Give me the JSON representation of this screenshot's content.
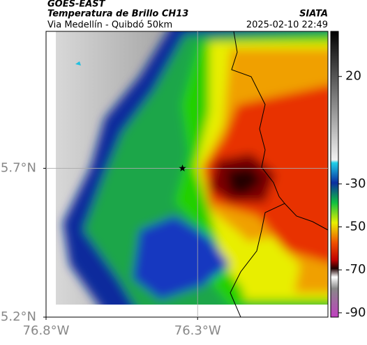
{
  "header": {
    "satellite": "GOES-EAST",
    "product": "Temperatura de Brillo CH13",
    "source": "SIATA",
    "region": "Via Medellín - Quibdó 50km",
    "datetime": "2025-02-10 22:49"
  },
  "map": {
    "xlim": [
      -76.8,
      -75.87
    ],
    "ylim": [
      5.2,
      6.16
    ],
    "xticks": [
      {
        "value": -76.8,
        "label": "76.8°W"
      },
      {
        "value": -76.3,
        "label": "76.3°W"
      }
    ],
    "yticks": [
      {
        "value": 5.2,
        "label": "5.2°N"
      },
      {
        "value": 5.7,
        "label": "5.7°N"
      }
    ],
    "grid": true,
    "marker": {
      "lon": -76.35,
      "lat": 5.7
    }
  },
  "colorbar": {
    "lim": [
      -92,
      41
    ],
    "ticks": [
      20,
      -30,
      -50,
      -70,
      -90
    ]
  }
}
